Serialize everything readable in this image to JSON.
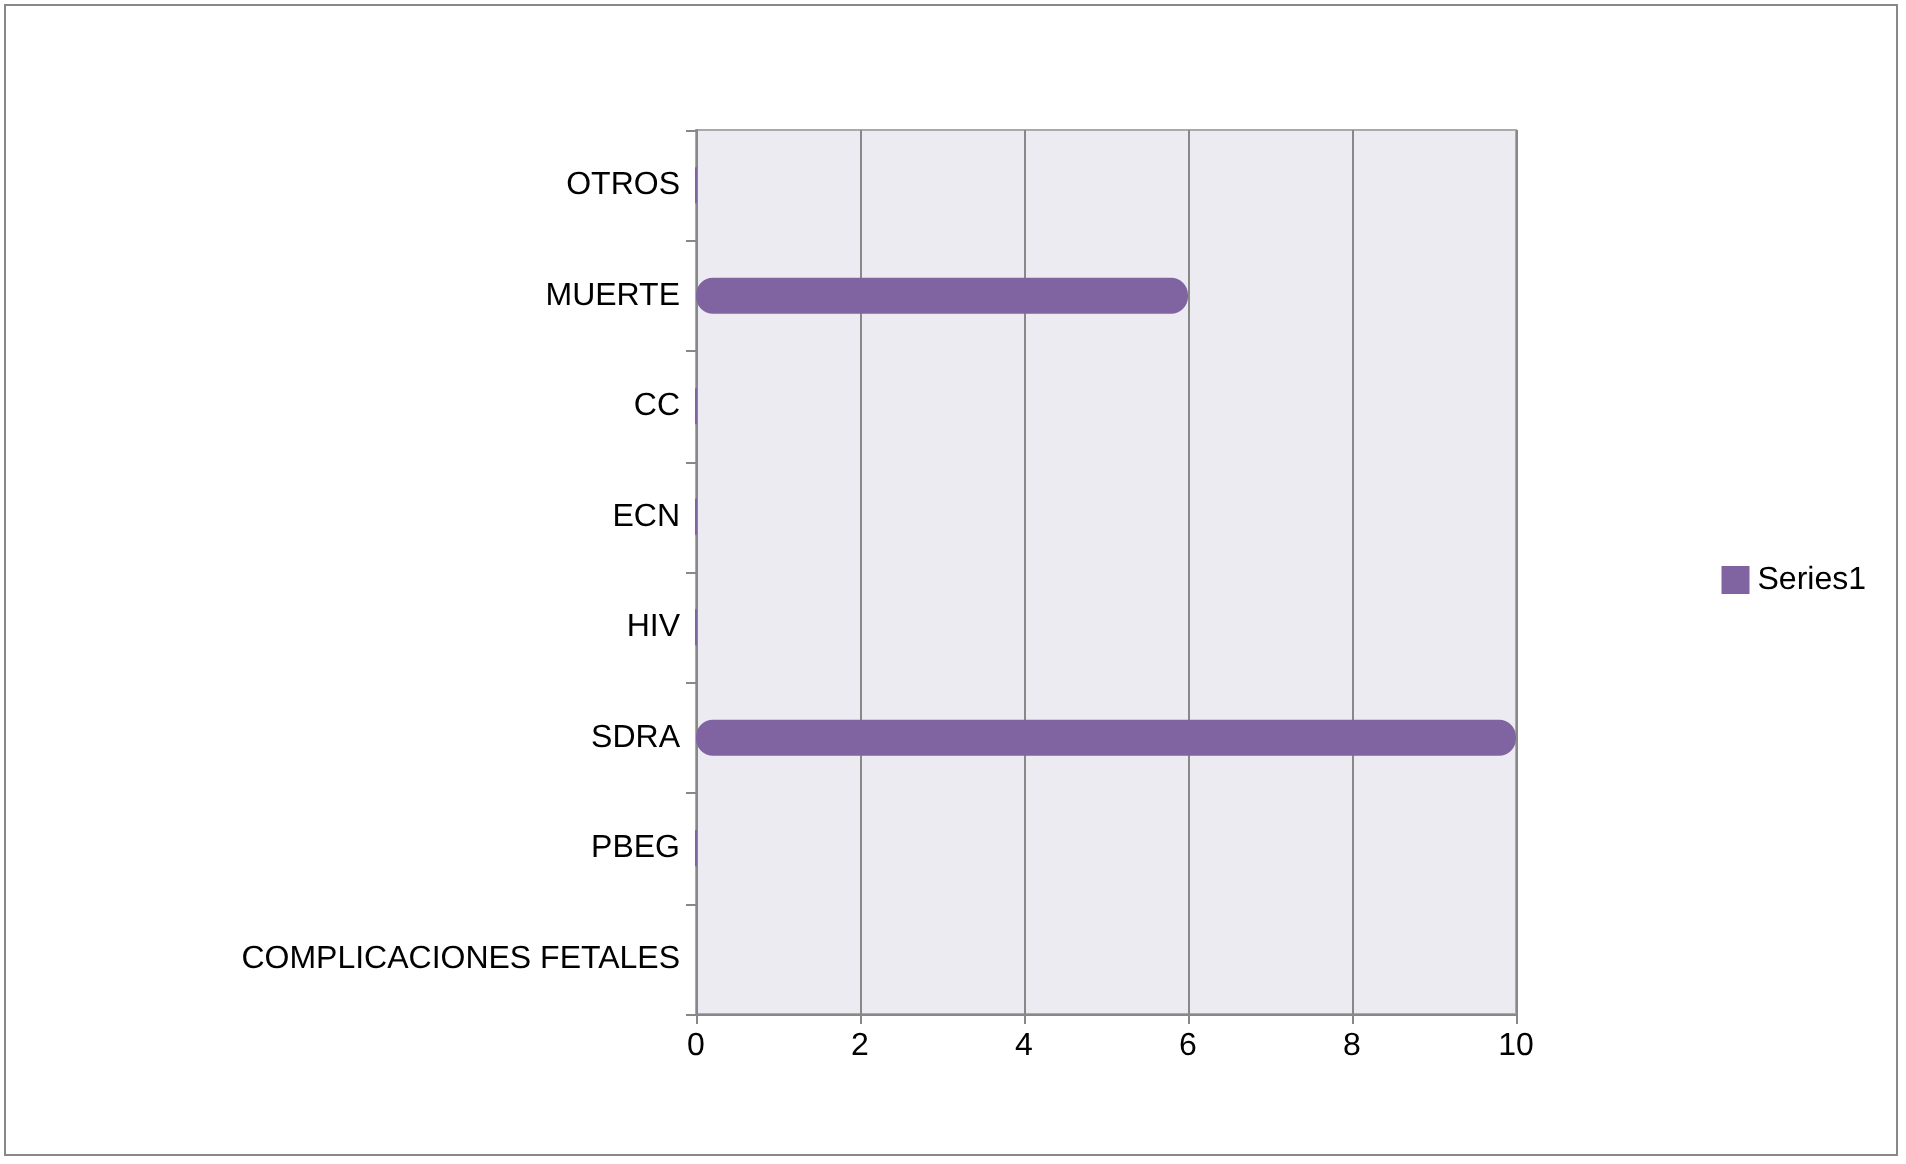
{
  "chart_data": {
    "type": "bar",
    "orientation": "horizontal",
    "categories": [
      "OTROS",
      "MUERTE",
      "CC",
      "ECN",
      "HIV",
      "SDRA",
      "PBEG",
      "COMPLICACIONES FETALES"
    ],
    "series": [
      {
        "name": "Series1",
        "color": "#8064a2",
        "values": [
          0,
          6,
          0,
          0,
          0,
          10,
          0,
          null
        ]
      }
    ],
    "xlim": [
      0,
      10
    ],
    "xticks": [
      0,
      2,
      4,
      6,
      8,
      10
    ],
    "grid": "x",
    "legend": "right"
  }
}
